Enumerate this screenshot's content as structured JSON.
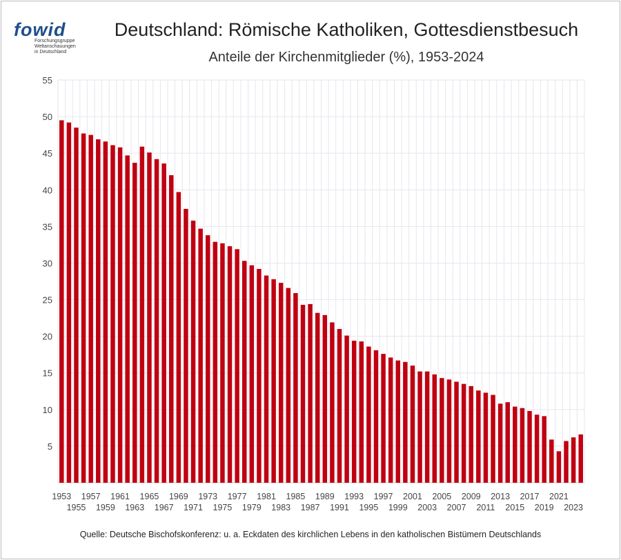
{
  "logo": {
    "text": "fowid",
    "subtitle": "Forschungsgruppe\nWeltanschauungen\nin Deutschland"
  },
  "title": "Deutschland: Römische Katholiken, Gottesdienstbesuch",
  "subtitle": "Anteile der Kirchenmitglieder (%), 1953-2024",
  "source": "Quelle: Deutsche Bischofskonferenz: u. a.  Eckdaten des kirchlichen Lebens in den katholischen Bistümern Deutschlands",
  "colors": {
    "bar": "#c00010",
    "grid": "#e6e6ee"
  },
  "chart_data": {
    "type": "bar",
    "title": "Deutschland: Römische Katholiken, Gottesdienstbesuch",
    "subtitle": "Anteile der Kirchenmitglieder (%), 1953-2024",
    "xlabel": "",
    "ylabel": "",
    "ylim": [
      0,
      55
    ],
    "yticks": [
      5,
      10,
      15,
      20,
      25,
      30,
      35,
      40,
      45,
      50,
      55
    ],
    "grid": true,
    "categories": [
      1953,
      1954,
      1955,
      1956,
      1957,
      1958,
      1959,
      1960,
      1961,
      1962,
      1963,
      1964,
      1965,
      1966,
      1967,
      1968,
      1969,
      1970,
      1971,
      1972,
      1973,
      1974,
      1975,
      1976,
      1977,
      1978,
      1979,
      1980,
      1981,
      1982,
      1983,
      1984,
      1985,
      1986,
      1987,
      1988,
      1989,
      1990,
      1991,
      1992,
      1993,
      1994,
      1995,
      1996,
      1997,
      1998,
      1999,
      2000,
      2001,
      2002,
      2003,
      2004,
      2005,
      2006,
      2007,
      2008,
      2009,
      2010,
      2011,
      2012,
      2013,
      2014,
      2015,
      2016,
      2017,
      2018,
      2019,
      2020,
      2021,
      2022,
      2023,
      2024
    ],
    "values": [
      49.5,
      49.2,
      48.5,
      47.7,
      47.5,
      46.9,
      46.6,
      46.1,
      45.8,
      44.7,
      43.7,
      45.9,
      45.1,
      44.2,
      43.6,
      42.0,
      39.7,
      37.4,
      35.8,
      34.7,
      33.8,
      32.9,
      32.7,
      32.3,
      31.9,
      30.3,
      29.7,
      29.2,
      28.3,
      27.8,
      27.3,
      26.6,
      25.9,
      24.3,
      24.4,
      23.2,
      22.9,
      21.9,
      21.0,
      20.1,
      19.4,
      19.3,
      18.6,
      18.1,
      17.6,
      17.1,
      16.7,
      16.5,
      16.0,
      15.2,
      15.2,
      14.8,
      14.3,
      14.1,
      13.8,
      13.5,
      13.2,
      12.6,
      12.3,
      12.0,
      10.8,
      11.0,
      10.4,
      10.2,
      9.8,
      9.3,
      9.1,
      5.9,
      4.3,
      5.7,
      6.2,
      6.6
    ]
  }
}
